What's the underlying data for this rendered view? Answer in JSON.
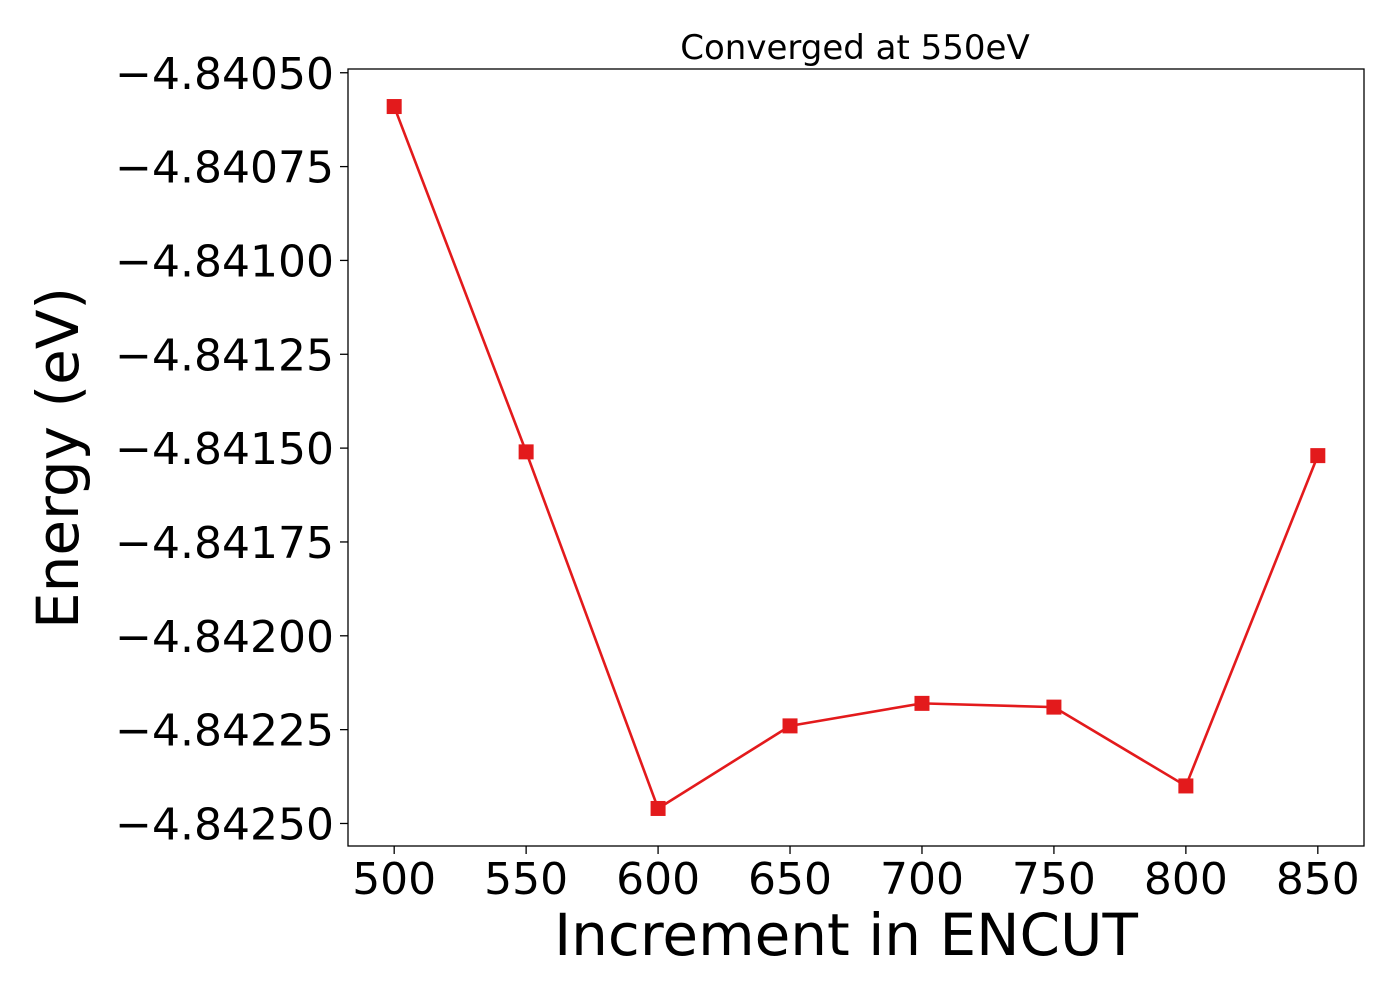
{
  "chart_data": {
    "type": "line",
    "title": "Converged at 550eV",
    "xlabel": "Increment in ENCUT",
    "ylabel": "Energy (eV)",
    "x": [
      500,
      550,
      600,
      650,
      700,
      750,
      800,
      850
    ],
    "series": [
      {
        "values": [
          -4.84059,
          -4.84151,
          -4.84246,
          -4.84224,
          -4.84218,
          -4.84219,
          -4.8424,
          -4.84152
        ],
        "color": "#e31a1c",
        "marker": "square"
      }
    ],
    "xticks": [
      500,
      550,
      600,
      650,
      700,
      750,
      800,
      850
    ],
    "xtick_labels": [
      "500",
      "550",
      "600",
      "650",
      "700",
      "750",
      "800",
      "850"
    ],
    "yticks": [
      -4.8405,
      -4.84075,
      -4.841,
      -4.84125,
      -4.8415,
      -4.84175,
      -4.842,
      -4.84225,
      -4.8425
    ],
    "ytick_labels": [
      "−4.84050",
      "−4.84075",
      "−4.84100",
      "−4.84125",
      "−4.84150",
      "−4.84175",
      "−4.84200",
      "−4.84225",
      "−4.84250"
    ],
    "xlim": [
      482.5,
      867.5
    ],
    "ylim": [
      -4.84256,
      -4.84049
    ],
    "grid": false
  }
}
